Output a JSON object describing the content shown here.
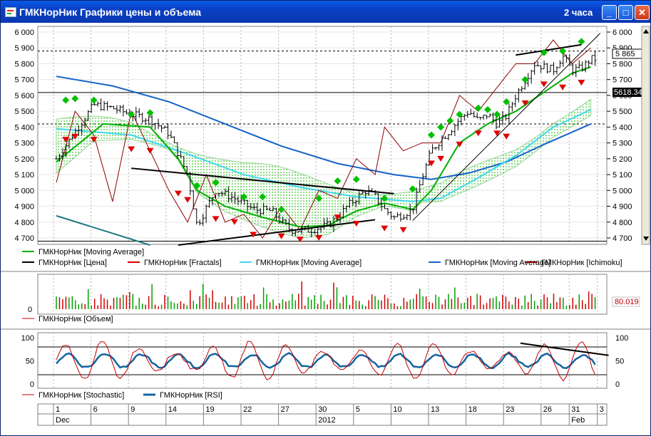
{
  "window": {
    "title": "ГМКНорНик Графики цены и объема",
    "interval": "2 часа",
    "btn_min": "_",
    "btn_max": "□",
    "btn_close": "✕"
  },
  "colors": {
    "price": "#000000",
    "fractal_up": "#00c000",
    "fractal_down": "#e00000",
    "ma_green": "#00b000",
    "ma_cyan": "#40d8f0",
    "ma_blue": "#1464c8",
    "ichimoku": "#8b0000",
    "volume": "#d00000",
    "stochastic": "#c00000",
    "rsi": "#1464a0"
  },
  "chart_data": [
    {
      "type": "line",
      "panel": "price",
      "yticks": [
        "6 000",
        "5 900",
        "5 800",
        "5 700",
        "5 600",
        "5 500",
        "5 400",
        "5 300",
        "5 200",
        "5 100",
        "5 000",
        "4 900",
        "4 800",
        "4 700"
      ],
      "ylim": [
        4670,
        6010
      ],
      "last_price": "5 865",
      "cursor_value": "5618.34",
      "legend": [
        "ГМКНорНик [Moving Average]",
        "ГМКНорНик [Цена]",
        "ГМКНорНик [Fractals]",
        "ГМКНорНик [Moving Average]",
        "ГМКНорНик [Moving Average]",
        "ГМКНорНик [Ichimoku]"
      ],
      "close_anchors": [
        [
          0,
          5200
        ],
        [
          4,
          5540
        ],
        [
          6,
          5520
        ],
        [
          8,
          5480
        ],
        [
          10,
          5450
        ],
        [
          12,
          5360
        ],
        [
          14,
          5100
        ],
        [
          15,
          4780
        ],
        [
          17,
          5000
        ],
        [
          19,
          4950
        ],
        [
          21,
          4880
        ],
        [
          23,
          4870
        ],
        [
          24,
          4800
        ],
        [
          25,
          4750
        ],
        [
          27,
          4750
        ],
        [
          29,
          4780
        ],
        [
          30,
          4830
        ],
        [
          31,
          4900
        ],
        [
          32,
          4950
        ],
        [
          33,
          5000
        ],
        [
          34,
          4960
        ],
        [
          35,
          4880
        ],
        [
          36,
          4830
        ],
        [
          37,
          4850
        ],
        [
          38,
          4880
        ],
        [
          39,
          5080
        ],
        [
          40,
          5250
        ],
        [
          41,
          5320
        ],
        [
          42,
          5380
        ],
        [
          43,
          5450
        ],
        [
          44,
          5500
        ],
        [
          45,
          5440
        ],
        [
          46,
          5480
        ],
        [
          47,
          5420
        ],
        [
          48,
          5470
        ],
        [
          49,
          5600
        ],
        [
          50,
          5700
        ],
        [
          51,
          5800
        ],
        [
          52,
          5780
        ],
        [
          53,
          5760
        ],
        [
          54,
          5850
        ],
        [
          55,
          5760
        ],
        [
          56,
          5770
        ],
        [
          57,
          5830
        ]
      ],
      "sma_green": [
        [
          0,
          5180
        ],
        [
          5,
          5420
        ],
        [
          10,
          5400
        ],
        [
          13,
          5200
        ],
        [
          15,
          5000
        ],
        [
          18,
          4900
        ],
        [
          22,
          4830
        ],
        [
          26,
          4770
        ],
        [
          29,
          4780
        ],
        [
          32,
          4870
        ],
        [
          35,
          4920
        ],
        [
          38,
          4880
        ],
        [
          40,
          5000
        ],
        [
          43,
          5300
        ],
        [
          46,
          5420
        ],
        [
          49,
          5500
        ],
        [
          52,
          5620
        ],
        [
          55,
          5740
        ],
        [
          57,
          5780
        ]
      ],
      "sma_cyan": [
        [
          0,
          5390
        ],
        [
          8,
          5350
        ],
        [
          14,
          5230
        ],
        [
          20,
          5100
        ],
        [
          26,
          5020
        ],
        [
          32,
          4960
        ],
        [
          38,
          4930
        ],
        [
          41,
          4950
        ],
        [
          45,
          5080
        ],
        [
          49,
          5220
        ],
        [
          53,
          5400
        ],
        [
          57,
          5510
        ]
      ],
      "sma_blue": [
        [
          0,
          5720
        ],
        [
          6,
          5660
        ],
        [
          12,
          5560
        ],
        [
          18,
          5420
        ],
        [
          24,
          5280
        ],
        [
          30,
          5170
        ],
        [
          36,
          5100
        ],
        [
          40,
          5070
        ],
        [
          44,
          5110
        ],
        [
          48,
          5180
        ],
        [
          52,
          5290
        ],
        [
          57,
          5420
        ]
      ],
      "ichimoku": [
        [
          0,
          5050
        ],
        [
          2,
          5500
        ],
        [
          4,
          5350
        ],
        [
          6,
          4930
        ],
        [
          8,
          5500
        ],
        [
          10,
          5250
        ],
        [
          12,
          5000
        ],
        [
          14,
          4800
        ],
        [
          16,
          5100
        ],
        [
          18,
          4800
        ],
        [
          20,
          4850
        ],
        [
          22,
          4700
        ],
        [
          24,
          4900
        ],
        [
          26,
          4750
        ],
        [
          28,
          5000
        ],
        [
          30,
          4950
        ],
        [
          32,
          5200
        ],
        [
          34,
          5100
        ],
        [
          35,
          5400
        ],
        [
          37,
          5250
        ],
        [
          39,
          5300
        ],
        [
          41,
          5300
        ],
        [
          43,
          5600
        ],
        [
          45,
          5500
        ],
        [
          47,
          5650
        ],
        [
          49,
          5800
        ],
        [
          51,
          5800
        ],
        [
          53,
          5950
        ],
        [
          55,
          5800
        ],
        [
          57,
          5900
        ]
      ],
      "fractals_up": [
        [
          1,
          5570
        ],
        [
          2,
          5580
        ],
        [
          4,
          5570
        ],
        [
          8,
          5480
        ],
        [
          10,
          5490
        ],
        [
          15,
          5030
        ],
        [
          17,
          5050
        ],
        [
          20,
          4960
        ],
        [
          22,
          4960
        ],
        [
          24,
          4880
        ],
        [
          28,
          4950
        ],
        [
          30,
          5060
        ],
        [
          32,
          5070
        ],
        [
          35,
          4950
        ],
        [
          38,
          5010
        ],
        [
          40,
          5350
        ],
        [
          41,
          5400
        ],
        [
          42,
          5440
        ],
        [
          43,
          5480
        ],
        [
          45,
          5520
        ],
        [
          46,
          5510
        ],
        [
          47,
          5480
        ],
        [
          48,
          5560
        ],
        [
          50,
          5700
        ],
        [
          52,
          5870
        ],
        [
          54,
          5880
        ],
        [
          56,
          5940
        ]
      ],
      "fractals_down": [
        [
          1,
          5320
        ],
        [
          2,
          5340
        ],
        [
          4,
          5320
        ],
        [
          8,
          5260
        ],
        [
          10,
          5250
        ],
        [
          13,
          4980
        ],
        [
          14,
          4940
        ],
        [
          17,
          4820
        ],
        [
          19,
          4800
        ],
        [
          21,
          4720
        ],
        [
          24,
          4710
        ],
        [
          26,
          4690
        ],
        [
          28,
          4700
        ],
        [
          30,
          4830
        ],
        [
          32,
          4790
        ],
        [
          35,
          4760
        ],
        [
          37,
          4750
        ],
        [
          40,
          5170
        ],
        [
          41,
          5200
        ],
        [
          43,
          5290
        ],
        [
          45,
          5360
        ],
        [
          47,
          5360
        ],
        [
          48,
          5340
        ],
        [
          50,
          5550
        ],
        [
          52,
          5670
        ],
        [
          54,
          5650
        ],
        [
          56,
          5680
        ]
      ],
      "trendlines": [
        [
          [
            8,
            5140
          ],
          [
            36,
            4980
          ]
        ],
        [
          [
            13,
            4655
          ],
          [
            34,
            4815
          ]
        ],
        [
          [
            38,
            4810
          ],
          [
            58,
            5992
          ]
        ],
        [
          [
            49,
            5855
          ],
          [
            56,
            5920
          ]
        ],
        [
          [
            0,
            4840
          ],
          [
            10,
            4655
          ]
        ]
      ],
      "hlines": [
        {
          "value": 5880,
          "dashed": true
        },
        {
          "value": 5618.34,
          "dashed": false
        },
        {
          "value": 5420,
          "dashed": true
        },
        {
          "value": 4680,
          "dashed": false
        }
      ]
    },
    {
      "type": "bar",
      "panel": "volume",
      "label": "0",
      "last_value": "80.019",
      "legend": [
        "ГМКНорНик [Объем]"
      ]
    },
    {
      "type": "line",
      "panel": "oscillator",
      "yticks": [
        "100",
        "50",
        "0"
      ],
      "ylim": [
        0,
        100
      ],
      "levels": [
        80,
        20
      ],
      "legend": [
        "ГМКНорНик [Stochastic]",
        "ГМКНорНик [RSI]"
      ]
    }
  ],
  "xaxis": {
    "day_labels": [
      {
        "i": 0,
        "t": "1"
      },
      {
        "i": 4,
        "t": "6"
      },
      {
        "i": 8,
        "t": "9"
      },
      {
        "i": 12,
        "t": "14"
      },
      {
        "i": 16,
        "t": "19"
      },
      {
        "i": 20,
        "t": "22"
      },
      {
        "i": 24,
        "t": "27"
      },
      {
        "i": 28,
        "t": "30"
      },
      {
        "i": 32,
        "t": "5"
      },
      {
        "i": 36,
        "t": "10"
      },
      {
        "i": 40,
        "t": "13"
      },
      {
        "i": 44,
        "t": "18"
      },
      {
        "i": 48,
        "t": "23"
      },
      {
        "i": 52,
        "t": "26"
      },
      {
        "i": 55,
        "t": "31"
      },
      {
        "i": 58,
        "t": "3"
      }
    ],
    "month_labels": [
      {
        "i": 0,
        "t": "Dec"
      },
      {
        "i": 28,
        "t": "2012"
      },
      {
        "i": 55,
        "t": "Feb"
      }
    ]
  }
}
